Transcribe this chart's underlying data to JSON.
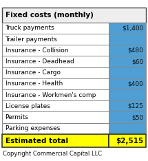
{
  "title": "Fixed costs (monthly)",
  "rows": [
    {
      "label": "Truck payments",
      "value": "$1,400"
    },
    {
      "label": "Trailer payments",
      "value": ""
    },
    {
      "label": "Insurance - Collision",
      "value": "$480"
    },
    {
      "label": "Insurance - Deadhead",
      "value": "$60"
    },
    {
      "label": "Insurance - Cargo",
      "value": ""
    },
    {
      "label": "Insurance - Health",
      "value": "$400"
    },
    {
      "label": "Insurance - Workmen's comp",
      "value": ""
    },
    {
      "label": "License plates",
      "value": "$125"
    },
    {
      "label": "Permits",
      "value": "$50"
    },
    {
      "label": "Parking expenses",
      "value": ""
    }
  ],
  "total_label": "Estimated total",
  "total_value": "$2,515",
  "footer": "Copyright Commercial Capital LLC",
  "header_bg": "#eeeeee",
  "row_bg": "#ffffff",
  "value_col_bg": "#4f9fd4",
  "total_bg": "#ffff00",
  "border_color": "#888888",
  "title_fontsize": 7.5,
  "row_fontsize": 6.5,
  "total_fontsize": 7.5,
  "footer_fontsize": 6.0,
  "col_split": 0.735,
  "fig_width": 2.15,
  "fig_height": 2.34,
  "dpi": 100
}
